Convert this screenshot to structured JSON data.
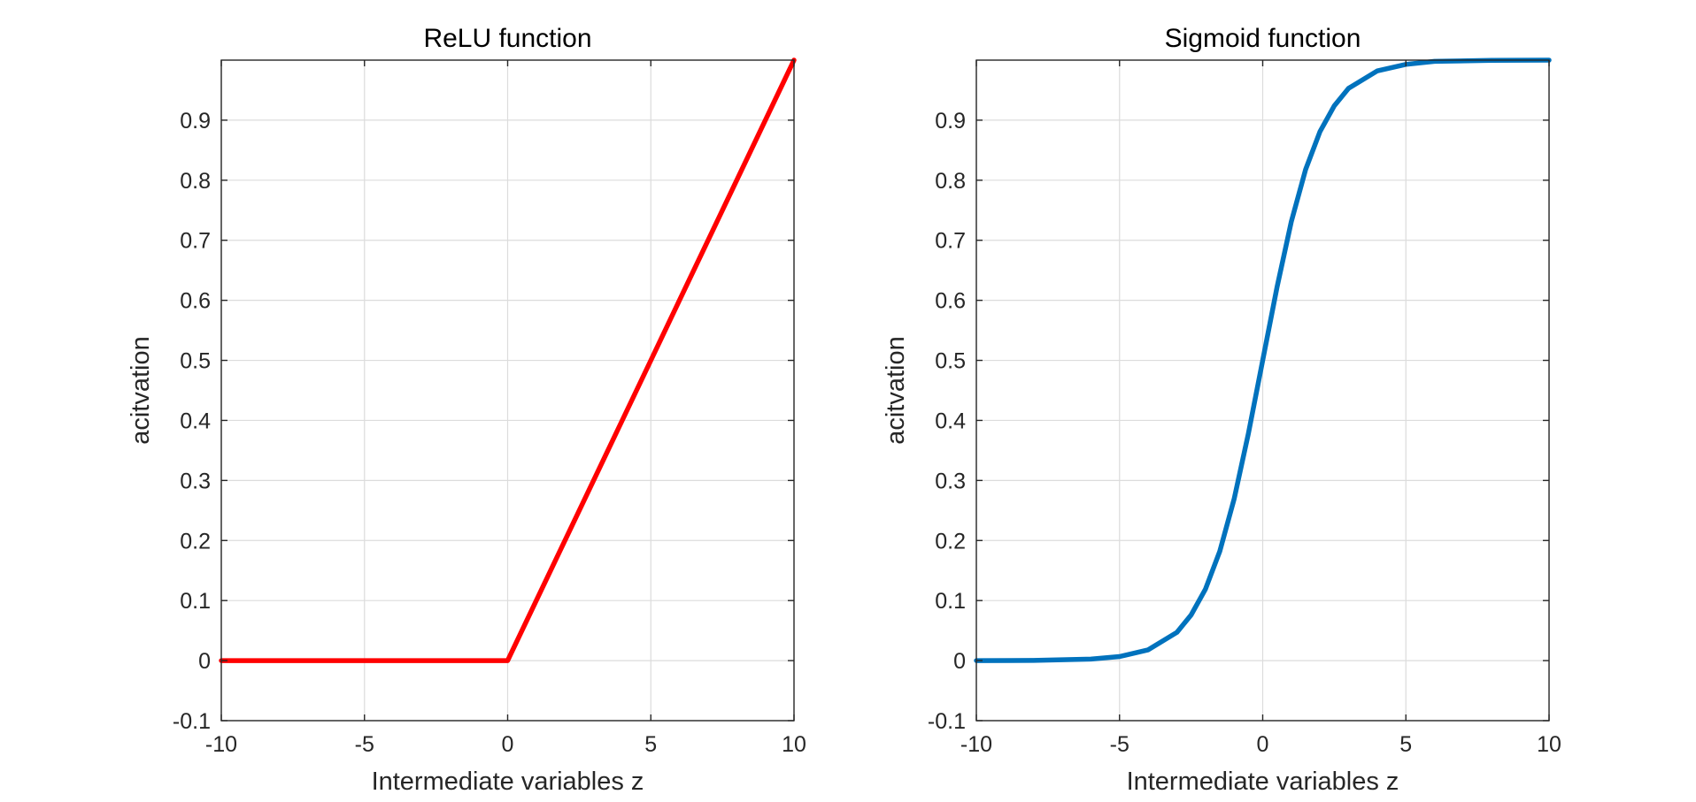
{
  "chart_data": [
    {
      "type": "line",
      "title": "ReLU function",
      "xlabel": "Intermediate variables z",
      "ylabel": "acitvation",
      "xlim": [
        -10,
        10
      ],
      "ylim": [
        -0.1,
        1
      ],
      "xticks": [
        -10,
        -5,
        0,
        5,
        10
      ],
      "xtick_labels": [
        "-10",
        "-5",
        "0",
        "5",
        "10"
      ],
      "yticks": [
        -0.1,
        0,
        0.1,
        0.2,
        0.3,
        0.4,
        0.5,
        0.6,
        0.7,
        0.8,
        0.9
      ],
      "ytick_labels": [
        "-0.1",
        "0",
        "0.1",
        "0.2",
        "0.3",
        "0.4",
        "0.5",
        "0.6",
        "0.7",
        "0.8",
        "0.9"
      ],
      "grid": true,
      "series": [
        {
          "color": "#ff0000",
          "x": [
            -10,
            -5,
            0,
            2,
            4,
            5,
            6,
            8,
            10
          ],
          "y": [
            0,
            0,
            0,
            0.2,
            0.4,
            0.5,
            0.6,
            0.8,
            1.0
          ]
        }
      ]
    },
    {
      "type": "line",
      "title": "Sigmoid function",
      "xlabel": "Intermediate variables z",
      "ylabel": "acitvation",
      "xlim": [
        -10,
        10
      ],
      "ylim": [
        -0.1,
        1
      ],
      "xticks": [
        -10,
        -5,
        0,
        5,
        10
      ],
      "xtick_labels": [
        "-10",
        "-5",
        "0",
        "5",
        "10"
      ],
      "yticks": [
        -0.1,
        0,
        0.1,
        0.2,
        0.3,
        0.4,
        0.5,
        0.6,
        0.7,
        0.8,
        0.9
      ],
      "ytick_labels": [
        "-0.1",
        "0",
        "0.1",
        "0.2",
        "0.3",
        "0.4",
        "0.5",
        "0.6",
        "0.7",
        "0.8",
        "0.9"
      ],
      "grid": true,
      "series": [
        {
          "color": "#0072bd",
          "x": [
            -10,
            -8,
            -6,
            -5,
            -4,
            -3,
            -2.5,
            -2,
            -1.5,
            -1,
            -0.5,
            0,
            0.5,
            1,
            1.5,
            2,
            2.5,
            3,
            4,
            5,
            6,
            8,
            10
          ],
          "y": [
            5e-05,
            0.0003,
            0.0025,
            0.0067,
            0.018,
            0.047,
            0.076,
            0.119,
            0.182,
            0.269,
            0.378,
            0.5,
            0.622,
            0.731,
            0.818,
            0.881,
            0.924,
            0.953,
            0.982,
            0.993,
            0.998,
            0.9997,
            0.99995
          ]
        }
      ]
    }
  ]
}
